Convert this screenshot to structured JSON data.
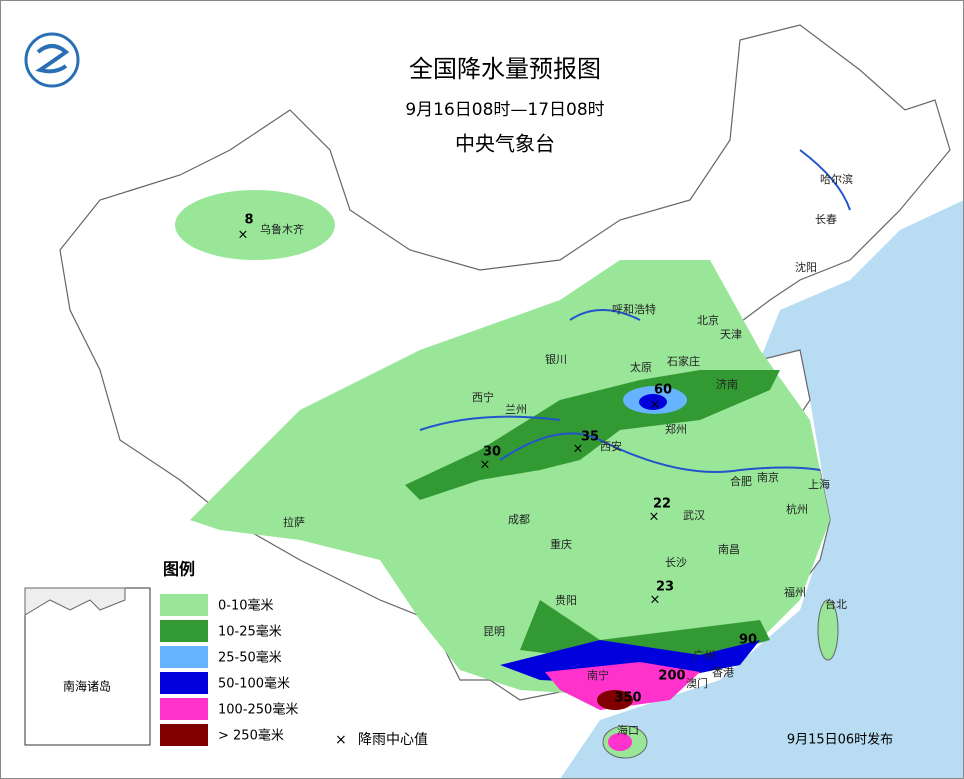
{
  "header": {
    "title": "全国降水量预报图",
    "period": "9月16日08时—17日08时",
    "issuer": "中央气象台"
  },
  "cities": [
    "乌鲁木齐",
    "哈尔滨",
    "长春",
    "沈阳",
    "北京",
    "天津",
    "呼和浩特",
    "石家庄",
    "太原",
    "济南",
    "银川",
    "西宁",
    "兰州",
    "西安",
    "郑州",
    "合肥",
    "南京",
    "上海",
    "杭州",
    "武汉",
    "南昌",
    "长沙",
    "成都",
    "重庆",
    "拉萨",
    "贵阳",
    "昆明",
    "福州",
    "台北",
    "南宁",
    "广州",
    "香港",
    "澳门",
    "海口"
  ],
  "rain_centers": [
    8,
    60,
    35,
    30,
    22,
    23,
    90,
    200,
    350
  ],
  "legend": {
    "title": "图例",
    "items": [
      "0-10毫米",
      "10-25毫米",
      "25-50毫米",
      "50-100毫米",
      "100-250毫米",
      "> 250毫米"
    ],
    "center_label": "降雨中心值"
  },
  "inset_label": "南海诸岛",
  "footer": "9月15日06时发布"
}
